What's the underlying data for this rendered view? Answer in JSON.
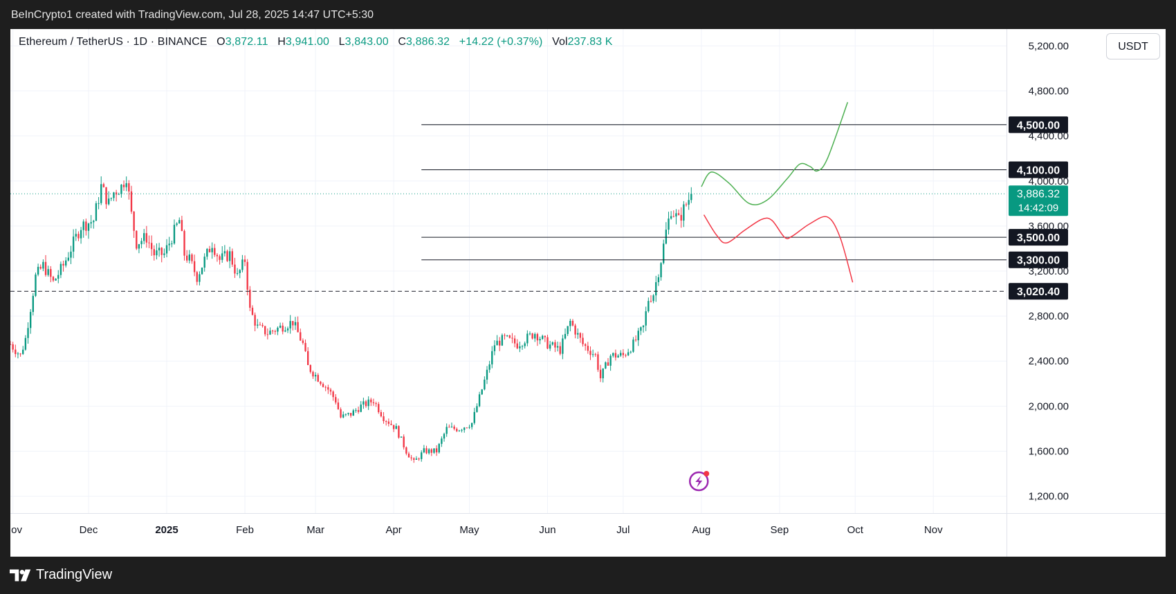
{
  "attribution": "BeInCrypto1 created with TradingView.com, Jul 28, 2025 14:47 UTC+5:30",
  "footer": {
    "brand": "TradingView"
  },
  "header": {
    "symbol": "Ethereum / TetherUS · 1D · BINANCE",
    "open_label": "O",
    "open": "3,872.11",
    "high_label": "H",
    "high": "3,941.00",
    "low_label": "L",
    "low": "3,843.00",
    "close_label": "C",
    "close": "3,886.32",
    "change": "+14.22 (+0.37%)",
    "vol_label": "Vol",
    "vol": "237.83 K"
  },
  "currency_button": "USDT",
  "colors": {
    "up": "#089981",
    "down": "#f23645",
    "bull_path": "#4caf50",
    "bear_path": "#f23645",
    "level_line": "#131722",
    "grid": "#f0f3fa",
    "axis_text": "#131722",
    "last_price": "#089981"
  },
  "chart_data": {
    "type": "candlestick",
    "symbol": "ETHUSDT",
    "interval": "1D",
    "x_range": [
      "2024-10-31",
      "2025-11-30"
    ],
    "ylim": [
      1050,
      5350
    ],
    "x_ticks": [
      {
        "date": "2024-11-01",
        "label": "Nov"
      },
      {
        "date": "2024-12-01",
        "label": "Dec"
      },
      {
        "date": "2025-01-01",
        "label": "2025",
        "bold": true
      },
      {
        "date": "2025-02-01",
        "label": "Feb"
      },
      {
        "date": "2025-03-01",
        "label": "Mar"
      },
      {
        "date": "2025-04-01",
        "label": "Apr"
      },
      {
        "date": "2025-05-01",
        "label": "May"
      },
      {
        "date": "2025-06-01",
        "label": "Jun"
      },
      {
        "date": "2025-07-01",
        "label": "Jul"
      },
      {
        "date": "2025-08-01",
        "label": "Aug"
      },
      {
        "date": "2025-09-01",
        "label": "Sep"
      },
      {
        "date": "2025-10-01",
        "label": "Oct"
      },
      {
        "date": "2025-11-01",
        "label": "Nov"
      }
    ],
    "y_ticks": [
      {
        "value": 1200,
        "label": "1,200.00"
      },
      {
        "value": 1600,
        "label": "1,600.00"
      },
      {
        "value": 2000,
        "label": "2,000.00"
      },
      {
        "value": 2400,
        "label": "2,400.00"
      },
      {
        "value": 2800,
        "label": "2,800.00"
      },
      {
        "value": 3200,
        "label": "3,200.00"
      },
      {
        "value": 3600,
        "label": "3,600.00"
      },
      {
        "value": 4000,
        "label": "4,000.00"
      },
      {
        "value": 4400,
        "label": "4,400.00"
      },
      {
        "value": 4800,
        "label": "4,800.00"
      },
      {
        "value": 5200,
        "label": "5,200.00"
      }
    ],
    "price_path": [
      [
        "2024-10-31",
        2550
      ],
      [
        "2024-11-04",
        2450
      ],
      [
        "2024-11-06",
        2600
      ],
      [
        "2024-11-10",
        3150
      ],
      [
        "2024-11-13",
        3250
      ],
      [
        "2024-11-17",
        3100
      ],
      [
        "2024-11-21",
        3250
      ],
      [
        "2024-11-24",
        3400
      ],
      [
        "2024-11-28",
        3600
      ],
      [
        "2024-12-03",
        3650
      ],
      [
        "2024-12-06",
        3950
      ],
      [
        "2024-12-09",
        3800
      ],
      [
        "2024-12-11",
        3900
      ],
      [
        "2024-12-14",
        3950
      ],
      [
        "2024-12-16",
        4050
      ],
      [
        "2024-12-18",
        3700
      ],
      [
        "2024-12-20",
        3450
      ],
      [
        "2024-12-24",
        3500
      ],
      [
        "2024-12-27",
        3350
      ],
      [
        "2024-12-31",
        3350
      ],
      [
        "2025-01-04",
        3550
      ],
      [
        "2025-01-06",
        3650
      ],
      [
        "2025-01-08",
        3350
      ],
      [
        "2025-01-10",
        3300
      ],
      [
        "2025-01-13",
        3150
      ],
      [
        "2025-01-15",
        3250
      ],
      [
        "2025-01-19",
        3450
      ],
      [
        "2025-01-22",
        3300
      ],
      [
        "2025-01-26",
        3350
      ],
      [
        "2025-01-29",
        3150
      ],
      [
        "2025-02-01",
        3300
      ],
      [
        "2025-02-03",
        2850
      ],
      [
        "2025-02-06",
        2700
      ],
      [
        "2025-02-10",
        2650
      ],
      [
        "2025-02-15",
        2700
      ],
      [
        "2025-02-20",
        2750
      ],
      [
        "2025-02-24",
        2550
      ],
      [
        "2025-02-26",
        2350
      ],
      [
        "2025-03-02",
        2250
      ],
      [
        "2025-03-06",
        2150
      ],
      [
        "2025-03-09",
        2050
      ],
      [
        "2025-03-11",
        1900
      ],
      [
        "2025-03-15",
        1930
      ],
      [
        "2025-03-19",
        2000
      ],
      [
        "2025-03-24",
        2050
      ],
      [
        "2025-03-28",
        1900
      ],
      [
        "2025-04-02",
        1800
      ],
      [
        "2025-04-06",
        1600
      ],
      [
        "2025-04-09",
        1500
      ],
      [
        "2025-04-13",
        1600
      ],
      [
        "2025-04-18",
        1600
      ],
      [
        "2025-04-22",
        1800
      ],
      [
        "2025-04-27",
        1800
      ],
      [
        "2025-05-02",
        1850
      ],
      [
        "2025-05-08",
        2300
      ],
      [
        "2025-05-11",
        2550
      ],
      [
        "2025-05-15",
        2600
      ],
      [
        "2025-05-20",
        2550
      ],
      [
        "2025-05-27",
        2650
      ],
      [
        "2025-06-01",
        2550
      ],
      [
        "2025-06-06",
        2500
      ],
      [
        "2025-06-10",
        2750
      ],
      [
        "2025-06-15",
        2550
      ],
      [
        "2025-06-20",
        2450
      ],
      [
        "2025-06-22",
        2250
      ],
      [
        "2025-06-26",
        2450
      ],
      [
        "2025-07-01",
        2450
      ],
      [
        "2025-07-05",
        2550
      ],
      [
        "2025-07-09",
        2700
      ],
      [
        "2025-07-11",
        2950
      ],
      [
        "2025-07-13",
        3000
      ],
      [
        "2025-07-16",
        3300
      ],
      [
        "2025-07-18",
        3550
      ],
      [
        "2025-07-20",
        3750
      ],
      [
        "2025-07-23",
        3650
      ],
      [
        "2025-07-25",
        3750
      ],
      [
        "2025-07-28",
        3886.32
      ]
    ],
    "candle_range_pct": 0.035,
    "horizontal_levels": [
      {
        "value": 4500,
        "label": "4,500.00",
        "from": "2025-04-12",
        "style": "solid"
      },
      {
        "value": 4100,
        "label": "4,100.00",
        "from": "2025-04-12",
        "style": "solid"
      },
      {
        "value": 3500,
        "label": "3,500.00",
        "from": "2025-04-12",
        "style": "solid"
      },
      {
        "value": 3300,
        "label": "3,300.00",
        "from": "2025-04-12",
        "style": "solid"
      },
      {
        "value": 3020.4,
        "label": "3,020.40",
        "from": "2024-10-31",
        "style": "dashed"
      }
    ],
    "last_price": {
      "value": 3886.32,
      "label": "3,886.32",
      "countdown": "14:42:09"
    },
    "projections": [
      {
        "name": "bullish",
        "color": "#4caf50",
        "points": [
          [
            "2025-08-01",
            3950
          ],
          [
            "2025-08-05",
            4080
          ],
          [
            "2025-08-12",
            3980
          ],
          [
            "2025-08-20",
            3800
          ],
          [
            "2025-08-27",
            3830
          ],
          [
            "2025-09-04",
            4020
          ],
          [
            "2025-09-09",
            4150
          ],
          [
            "2025-09-13",
            4130
          ],
          [
            "2025-09-16",
            4090
          ],
          [
            "2025-09-20",
            4200
          ],
          [
            "2025-09-28",
            4700
          ]
        ]
      },
      {
        "name": "bearish",
        "color": "#f23645",
        "points": [
          [
            "2025-08-02",
            3700
          ],
          [
            "2025-08-07",
            3520
          ],
          [
            "2025-08-11",
            3450
          ],
          [
            "2025-08-18",
            3560
          ],
          [
            "2025-08-25",
            3660
          ],
          [
            "2025-08-29",
            3650
          ],
          [
            "2025-09-03",
            3500
          ],
          [
            "2025-09-06",
            3510
          ],
          [
            "2025-09-13",
            3620
          ],
          [
            "2025-09-20",
            3680
          ],
          [
            "2025-09-25",
            3500
          ],
          [
            "2025-09-30",
            3100
          ]
        ]
      }
    ]
  }
}
